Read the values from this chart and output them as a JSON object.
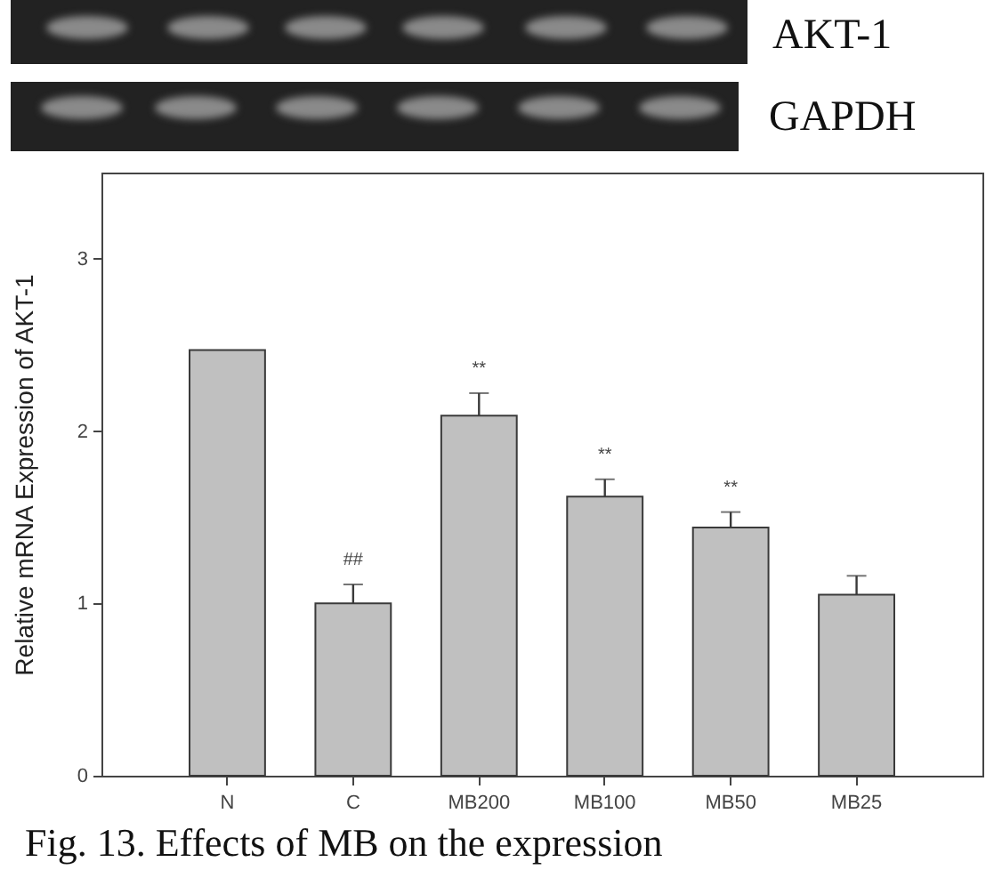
{
  "chart_data": {
    "type": "bar",
    "categories": [
      "N",
      "C",
      "MB200",
      "MB100",
      "MB50",
      "MB25"
    ],
    "values": [
      2.47,
      1.0,
      2.09,
      1.62,
      1.44,
      1.05
    ],
    "errors": [
      null,
      0.11,
      0.13,
      0.1,
      0.09,
      0.11
    ],
    "color": "#c0c0c0",
    "ylabel": "Relative mRNA Expression of AKT-1",
    "ylim": [
      0,
      3.5
    ],
    "yticks": [
      0,
      1,
      2,
      3
    ],
    "grid": false,
    "annotations": [
      "AKT-1",
      "GAPDH",
      {
        "text": "##",
        "x": "C",
        "y": 1.0
      },
      {
        "text": "**",
        "x": "MB200",
        "y": 2.09
      },
      {
        "text": "**",
        "x": "MB100",
        "y": 1.62
      },
      {
        "text": "**",
        "x": "MB50",
        "y": 1.44
      },
      "Fig. 13. Effects of MB on the expression"
    ]
  }
}
